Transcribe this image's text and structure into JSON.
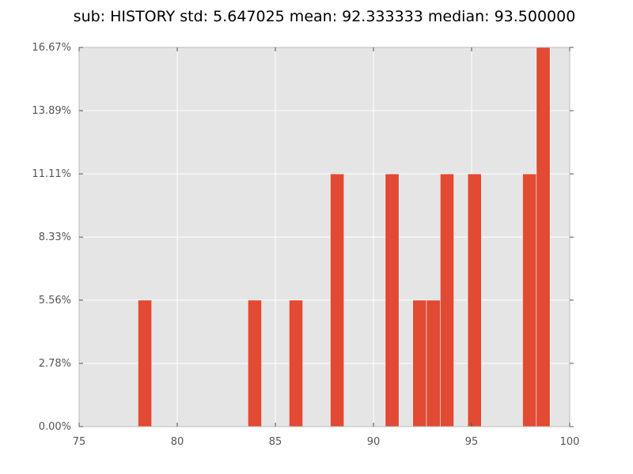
{
  "chart_data": {
    "type": "bar",
    "title": "sub: HISTORY std: 5.647025 mean: 92.333333 median: 93.500000",
    "xlabel": "",
    "ylabel": "",
    "xlim": [
      75,
      100
    ],
    "ylim": [
      0,
      16.67
    ],
    "grid": true,
    "x_ticks": [
      75,
      80,
      85,
      90,
      95,
      100
    ],
    "x_tick_labels": [
      "75",
      "80",
      "85",
      "90",
      "95",
      "100"
    ],
    "y_ticks": [
      0,
      2.78,
      5.56,
      8.33,
      11.11,
      13.89,
      16.67
    ],
    "y_tick_labels": [
      "0.00%",
      "2.78%",
      "5.56%",
      "8.33%",
      "11.11%",
      "13.89%",
      "16.67%"
    ],
    "bins": [
      {
        "x0": 78.0,
        "x1": 78.7,
        "value": 5.56
      },
      {
        "x0": 83.6,
        "x1": 84.3,
        "value": 5.56
      },
      {
        "x0": 85.7,
        "x1": 86.4,
        "value": 5.56
      },
      {
        "x0": 87.8,
        "x1": 88.5,
        "value": 11.11
      },
      {
        "x0": 90.6,
        "x1": 91.3,
        "value": 11.11
      },
      {
        "x0": 92.0,
        "x1": 92.7,
        "value": 5.56
      },
      {
        "x0": 92.7,
        "x1": 93.4,
        "value": 5.56
      },
      {
        "x0": 93.4,
        "x1": 94.1,
        "value": 11.11
      },
      {
        "x0": 94.8,
        "x1": 95.5,
        "value": 11.11
      },
      {
        "x0": 97.6,
        "x1": 98.3,
        "value": 11.11
      },
      {
        "x0": 98.3,
        "x1": 99.0,
        "value": 16.67
      }
    ],
    "colors": {
      "bar": "#E24A33",
      "background": "#E5E5E5",
      "grid": "#FFFFFF",
      "axis": "#BCBCBC"
    }
  }
}
